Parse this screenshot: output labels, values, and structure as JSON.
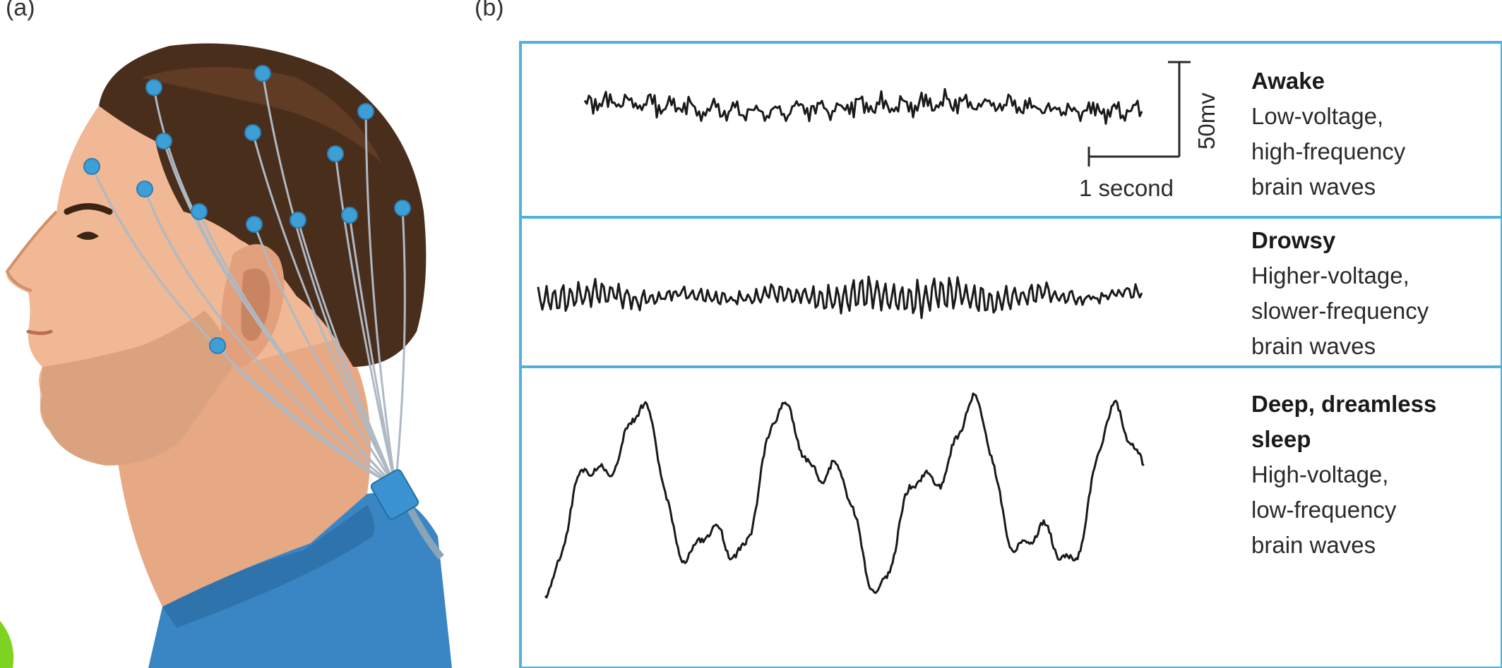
{
  "panel_a": {
    "label": "(a)"
  },
  "panel_b": {
    "label": "(b)",
    "scale_bar": {
      "voltage_label": "50mv",
      "time_label": "1 second"
    },
    "states": [
      {
        "title": "Awake",
        "description": "Low-voltage,\nhigh-frequency\nbrain waves",
        "wave": "low-voltage, high-frequency"
      },
      {
        "title": "Drowsy",
        "description": "Higher-voltage,\nslower-frequency\nbrain waves",
        "wave": "higher-voltage, slower-frequency"
      },
      {
        "title": "Deep, dreamless\nsleep",
        "description": "High-voltage,\nlow-frequency\nbrain waves",
        "wave": "high-voltage, low-frequency"
      }
    ]
  },
  "colors": {
    "panel_border": "#4fb3d9",
    "trace": "#1a1a1a",
    "electrode": "#3d9fd6",
    "shirt": "#3a86c4",
    "skin": "#f0b894",
    "hair": "#4a2e1c",
    "accent_green": "#7ed321"
  }
}
